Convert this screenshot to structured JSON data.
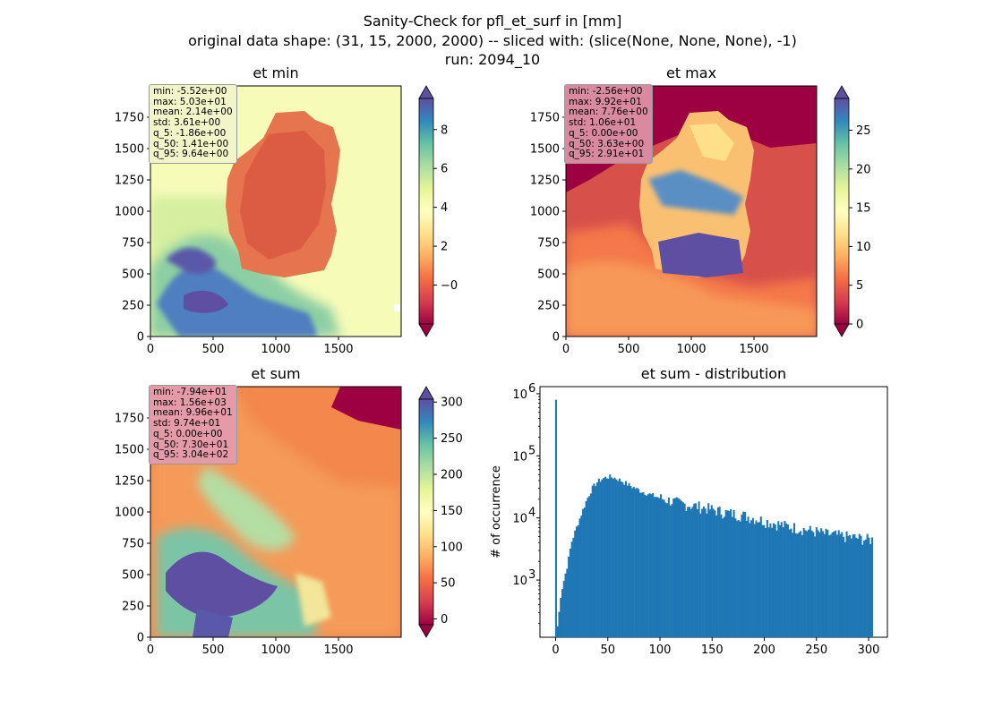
{
  "figure": {
    "title_lines": [
      "Sanity-Check for pfl_et_surf in [mm]",
      "original data shape: (31, 15, 2000, 2000) -- sliced with: (slice(None, None, None), -1)",
      "run: 2094_10"
    ]
  },
  "chart_data": [
    {
      "type": "heatmap",
      "title": "et min",
      "xlim": [
        0,
        2000
      ],
      "ylim": [
        0,
        2000
      ],
      "xticks": [
        0,
        500,
        1000,
        1500
      ],
      "yticks": [
        0,
        250,
        500,
        750,
        1000,
        1250,
        1500,
        1750
      ],
      "colormap": "Spectral",
      "colorbar": {
        "vmin": -2,
        "vmax": 9.6,
        "ticks": [
          0,
          2,
          4,
          6,
          8
        ],
        "extend": "both"
      },
      "stats": [
        "min: -5.52e+00",
        "max: 5.03e+01",
        "mean: 2.14e+00",
        "std: 3.61e+00",
        "q_5: -1.86e+00",
        "q_50: 1.41e+00",
        "q_95: 9.64e+00"
      ],
      "stats_box_color": "#f2f5c8"
    },
    {
      "type": "heatmap",
      "title": "et max",
      "xlim": [
        0,
        2000
      ],
      "ylim": [
        0,
        2000
      ],
      "xticks": [
        0,
        500,
        1000,
        1500
      ],
      "yticks": [
        0,
        250,
        500,
        750,
        1000,
        1250,
        1500,
        1750
      ],
      "colormap": "Spectral",
      "colorbar": {
        "vmin": 0,
        "vmax": 29.1,
        "ticks": [
          0,
          5,
          10,
          15,
          20,
          25
        ],
        "extend": "both"
      },
      "stats": [
        "min: -2.56e+00",
        "max: 9.92e+01",
        "mean: 7.76e+00",
        "std: 1.06e+01",
        "q_5: 0.00e+00",
        "q_50: 3.63e+00",
        "q_95: 2.91e+01"
      ],
      "stats_box_color": "#d98aa0"
    },
    {
      "type": "heatmap",
      "title": "et sum",
      "xlim": [
        0,
        2000
      ],
      "ylim": [
        0,
        2000
      ],
      "xticks": [
        0,
        500,
        1000,
        1500
      ],
      "yticks": [
        0,
        250,
        500,
        750,
        1000,
        1250,
        1500,
        1750
      ],
      "colormap": "Spectral",
      "colorbar": {
        "vmin": -8,
        "vmax": 304,
        "ticks": [
          0,
          50,
          100,
          150,
          200,
          250,
          300
        ],
        "extend": "both"
      },
      "stats": [
        "min: -7.94e+01",
        "max: 1.56e+03",
        "mean: 9.96e+01",
        "std: 9.74e+01",
        "q_5: 0.00e+00",
        "q_50: 7.30e+01",
        "q_95: 3.04e+02"
      ],
      "stats_box_color": "#e59aa8"
    },
    {
      "type": "bar",
      "title": "et sum - distribution",
      "ylabel": "# of occurrence",
      "yscale": "log",
      "color": "#1f77b4",
      "xlim": [
        -15,
        318
      ],
      "ylim": [
        120,
        1300000
      ],
      "xticks": [
        0,
        50,
        100,
        150,
        200,
        250,
        300
      ],
      "yticks": [
        {
          "value": 1000,
          "exp": "3"
        },
        {
          "value": 10000,
          "exp": "4"
        },
        {
          "value": 100000,
          "exp": "5"
        },
        {
          "value": 1000000,
          "exp": "6"
        }
      ],
      "bin_edges_range": [
        -0.5,
        304
      ],
      "bins_described": [
        {
          "x": 0,
          "y": 800000
        },
        {
          "x": 2,
          "y": 180
        },
        {
          "x": 5,
          "y": 600
        },
        {
          "x": 8,
          "y": 1000
        },
        {
          "x": 12,
          "y": 2000
        },
        {
          "x": 15,
          "y": 4000
        },
        {
          "x": 20,
          "y": 7000
        },
        {
          "x": 25,
          "y": 12000
        },
        {
          "x": 30,
          "y": 20000
        },
        {
          "x": 35,
          "y": 30000
        },
        {
          "x": 40,
          "y": 38000
        },
        {
          "x": 45,
          "y": 43000
        },
        {
          "x": 50,
          "y": 46000
        },
        {
          "x": 55,
          "y": 45000
        },
        {
          "x": 60,
          "y": 42000
        },
        {
          "x": 70,
          "y": 34000
        },
        {
          "x": 80,
          "y": 28000
        },
        {
          "x": 90,
          "y": 24000
        },
        {
          "x": 100,
          "y": 21000
        },
        {
          "x": 120,
          "y": 17000
        },
        {
          "x": 140,
          "y": 15000
        },
        {
          "x": 160,
          "y": 12500
        },
        {
          "x": 180,
          "y": 11000
        },
        {
          "x": 200,
          "y": 9000
        },
        {
          "x": 220,
          "y": 7500
        },
        {
          "x": 240,
          "y": 6500
        },
        {
          "x": 260,
          "y": 5500
        },
        {
          "x": 280,
          "y": 5000
        },
        {
          "x": 300,
          "y": 4500
        }
      ]
    }
  ]
}
